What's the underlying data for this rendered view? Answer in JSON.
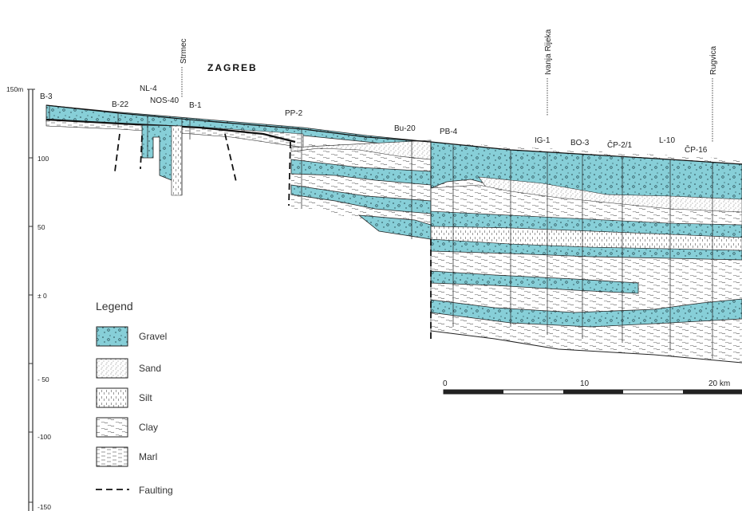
{
  "title": "ZAGREB",
  "elevation_axis": {
    "top_label": "150m",
    "labels": [
      "100",
      "50",
      "± 0",
      "- 50",
      "-100",
      "-150"
    ]
  },
  "boreholes": [
    "B-3",
    "B-22",
    "NL-4",
    "NOS-40",
    "B-1",
    "PP-2",
    "Bu-20",
    "PB-4",
    "IG-1",
    "BO-3",
    "ČP-2/1",
    "L-10",
    "ČP-16"
  ],
  "localities": [
    "Strmec",
    "Ivanja Rijeka",
    "Rugvica"
  ],
  "scale_bar": {
    "labels": [
      "0",
      "10",
      "20 km"
    ]
  },
  "legend": {
    "title": "Legend",
    "items": [
      {
        "key": "gravel",
        "label": "Gravel"
      },
      {
        "key": "sand",
        "label": "Sand"
      },
      {
        "key": "silt",
        "label": "Silt"
      },
      {
        "key": "clay",
        "label": "Clay"
      },
      {
        "key": "marl",
        "label": "Marl"
      },
      {
        "key": "faulting",
        "label": "Faulting"
      }
    ]
  },
  "colors": {
    "gravel": "#87cfd8",
    "line": "#222222",
    "background": "#ffffff"
  }
}
